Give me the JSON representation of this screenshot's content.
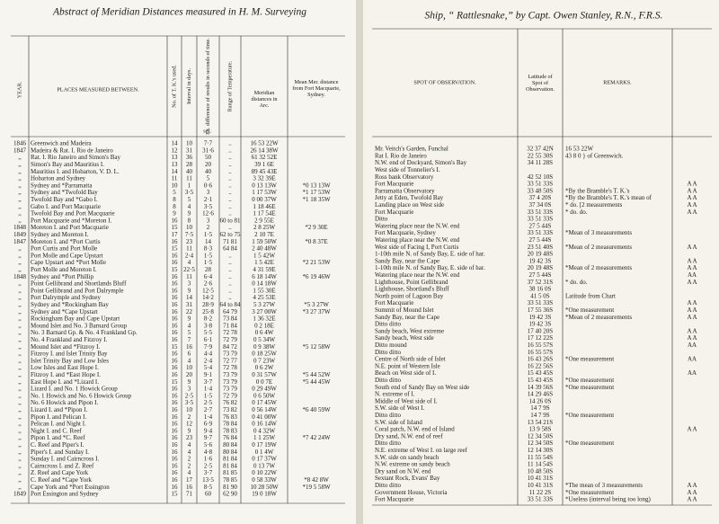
{
  "left_page": {
    "title": "Abstract of Meridian Distances measured in H. M. Surveying",
    "headers": {
      "year": "YEAR.",
      "place": "PLACES MEASURED BETWEEN.",
      "tk": "No. of T. K.'s used.",
      "days": "Interval in days.",
      "err": "Ex. difference of results in seconds of time.",
      "err_unit": "sec.",
      "temp": "Range of Temperature.",
      "arc": "Meridian distances in Arc.",
      "mean": "Mean Mer. distance from Fort Macquarie, Sydney."
    },
    "rows": [
      {
        "year": "1846",
        "place": "Greenwich and Madeira",
        "tk": "14",
        "days": "10",
        "err": "7·7",
        "temp": "..",
        "arc": "16 53 22W"
      },
      {
        "year": "1847",
        "place": "Madeira & Rat. I. Rio de Janeiro",
        "tk": "12",
        "days": "31",
        "err": "31·6",
        "temp": "..",
        "arc": "26 14 38W"
      },
      {
        "year": ",,",
        "place": "Rat. I. Rio Janeiro and Simon's Bay",
        "tk": "13",
        "days": "36",
        "err": "50",
        "temp": "..",
        "arc": "61 32 52E"
      },
      {
        "year": ",,",
        "place": "Simon's Bay and Mauritius I.",
        "tk": "13",
        "days": "28",
        "err": "20",
        "temp": "..",
        "arc": "39 1 6E"
      },
      {
        "year": ",,",
        "place": "Mauritius I. and Hobarton, V. D. L.",
        "tk": "14",
        "days": "40",
        "err": "40",
        "temp": "..",
        "arc": "89 45 43E"
      },
      {
        "year": ",,",
        "place": "Hobarton and Sydney",
        "tk": "11",
        "days": "11",
        "err": "5",
        "temp": "..",
        "arc": "3 32 39E"
      },
      {
        "year": ",,",
        "place": "Sydney and *Parramatta",
        "tk": "10",
        "days": "1",
        "err": "0·6",
        "temp": "..",
        "arc": "0 13 13W",
        "mean": "*0 13 13W"
      },
      {
        "year": ",,",
        "place": "Sydney and *Twofold Bay",
        "tk": "5",
        "days": "3·5",
        "err": "3",
        "temp": "..",
        "arc": "1 17 53W",
        "mean": "*1 17 53W"
      },
      {
        "year": ",,",
        "place": "Twofold Bay and *Gabo I.",
        "tk": "8",
        "days": "5",
        "err": "2·1",
        "temp": "..",
        "arc": "0 00 37W",
        "mean": "*1 18 35W"
      },
      {
        "year": ",,",
        "place": "Gabo I. and Port Macquarie",
        "tk": "8",
        "days": "4",
        "err": "3·5",
        "temp": "..",
        "arc": "1 18 46E"
      },
      {
        "year": ",,",
        "place": "Twofold Bay and Port Macquarie",
        "tk": "9",
        "days": "9",
        "err": "12·6",
        "temp": "..",
        "arc": "1 17 54E"
      },
      {
        "year": ",,",
        "place": "Port Macquarie and *Moreton I.",
        "tk": "16",
        "days": "8",
        "err": "3",
        "temp": "60 to 81",
        "arc": "2 9 55E"
      },
      {
        "year": "1848",
        "place": "Moreton I. and Port Macquarie",
        "tk": "15",
        "days": "10",
        "err": "2",
        "temp": "..",
        "arc": "2 8 25W",
        "mean": "*2 9 30E"
      },
      {
        "year": "1849",
        "place": "Sydney and Moreton I.",
        "tk": "17",
        "days": "7·5",
        "err": "1·5",
        "temp": "62 to 75",
        "arc": "2 10 7E"
      },
      {
        "year": "1847",
        "place": "Moreton I. and *Port Curtis",
        "tk": "16",
        "days": "23",
        "err": "14",
        "temp": "71 81",
        "arc": "1 59 50W",
        "mean": "*0 8 37E"
      },
      {
        "year": ",,",
        "place": "Port Curtis and Port Molle",
        "tk": "15",
        "days": "11",
        "err": "8·3",
        "temp": "64 84",
        "arc": "2 40 48W"
      },
      {
        "year": ",,",
        "place": "Port Molle and Cape Upstart",
        "tk": "16",
        "days": "2·4",
        "err": "1·5",
        "temp": "..",
        "arc": "1 5 42W"
      },
      {
        "year": ",,",
        "place": "Cape Upstart and *Port Molle",
        "tk": "16",
        "days": "4",
        "err": "1·5",
        "temp": "..",
        "arc": "1 5 42E",
        "mean": "*2 21 53W"
      },
      {
        "year": ",,",
        "place": "Port Molle and Moreton I.",
        "tk": "15",
        "days": "22·5",
        "err": "28",
        "temp": "..",
        "arc": "4 31 59E"
      },
      {
        "year": "1848",
        "place": "Sydney and *Port Phillip",
        "tk": "16",
        "days": "11",
        "err": "6·4",
        "temp": "..",
        "arc": "6 18 14W",
        "mean": "*6 19 46W"
      },
      {
        "year": ",,",
        "place": "Point Gellibrand and Shortlands Bluff",
        "tk": "16",
        "days": "3",
        "err": "2·6",
        "temp": "..",
        "arc": "0 14 18W"
      },
      {
        "year": ",,",
        "place": "Point Gellibrand and Port Dalrymple",
        "tk": "16",
        "days": "9",
        "err": "12·5",
        "temp": "..",
        "arc": "1 55 30E"
      },
      {
        "year": ",,",
        "place": "Port Dalrymple and Sydney",
        "tk": "16",
        "days": "14",
        "err": "14·2",
        "temp": "..",
        "arc": "4 25 53E"
      },
      {
        "year": ",,",
        "place": "Sydney and *Rockingham Bay",
        "tk": "16",
        "days": "31",
        "err": "28·9",
        "temp": "64 to 84",
        "arc": "5 3 27W",
        "mean": "*5 3 27W"
      },
      {
        "year": ",,",
        "place": "Sydney and *Cape Upstart",
        "tk": "16",
        "days": "22",
        "err": "25·8",
        "temp": "64 79",
        "arc": "3 27 00W",
        "mean": "*3 27 37W"
      },
      {
        "year": ",,",
        "place": "Rockingham Bay and Cape Upstart",
        "tk": "16",
        "days": "9",
        "err": "8·2",
        "temp": "73 84",
        "arc": "1 36 32E"
      },
      {
        "year": ",,",
        "place": "Mound Islet and No. 3 Barnard Group",
        "tk": "16",
        "days": "4",
        "err": "3·8",
        "temp": "71 84",
        "arc": "0 2 18E"
      },
      {
        "year": ",,",
        "place": "No. 3 Barnard Gp. & No. 4 Frankland Gp.",
        "tk": "16",
        "days": "5",
        "err": "5·5",
        "temp": "72 78",
        "arc": "0 6 4W"
      },
      {
        "year": ",,",
        "place": "No. 4 Frankland and Fitzroy I.",
        "tk": "16",
        "days": "7",
        "err": "6·1",
        "temp": "72 79",
        "arc": "0 5 34W"
      },
      {
        "year": ",,",
        "place": "Mound Islet and *Fitzroy I.",
        "tk": "15",
        "days": "16",
        "err": "7·9",
        "temp": "84 72",
        "arc": "0 9 38W",
        "mean": "*5 12 58W"
      },
      {
        "year": ",,",
        "place": "Fitzroy I. and Islet Trinity Bay",
        "tk": "16",
        "days": "6",
        "err": "4·4",
        "temp": "73 79",
        "arc": "0 18 25W"
      },
      {
        "year": ",,",
        "place": "Islet Trinity Bay and Low Isles",
        "tk": "16",
        "days": "4",
        "err": "2·4",
        "temp": "72 77",
        "arc": "0 7 23W"
      },
      {
        "year": ",,",
        "place": "Low Isles and East Hope I.",
        "tk": "16",
        "days": "10",
        "err": "5·4",
        "temp": "72 78",
        "arc": "0 6 2W"
      },
      {
        "year": ",,",
        "place": "Fitzroy I. and *East Hope I.",
        "tk": "16",
        "days": "20",
        "err": "9·1",
        "temp": "73 79",
        "arc": "0 31 57W",
        "mean": "*5 44 52W"
      },
      {
        "year": ",,",
        "place": "East Hope I. and *Lizard I.",
        "tk": "15",
        "days": "9",
        "err": "3·7",
        "temp": "73 79",
        "arc": "0 0 7E",
        "mean": "*5 44 45W"
      },
      {
        "year": ",,",
        "place": "Lizard I. and No. 1 Howick Group",
        "tk": "16",
        "days": "3",
        "err": "1·4",
        "temp": "73 79",
        "arc": "0 29 49W"
      },
      {
        "year": ",,",
        "place": "No. 1 Howick and No. 6 Howick Group",
        "tk": "16",
        "days": "2·5",
        "err": "1·5",
        "temp": "72 79",
        "arc": "0 6 50W"
      },
      {
        "year": ",,",
        "place": "No. 6 Howick and Pipon I.",
        "tk": "16",
        "days": "3·5",
        "err": "2·5",
        "temp": "76 82",
        "arc": "0 17 45W"
      },
      {
        "year": ",,",
        "place": "Lizard I. and *Pipon I.",
        "tk": "16",
        "days": "10",
        "err": "2·7",
        "temp": "73 82",
        "arc": "0 56 14W",
        "mean": "*6 40 59W"
      },
      {
        "year": ",,",
        "place": "Pipon I. and Pelican I.",
        "tk": "16",
        "days": "2",
        "err": "1·4",
        "temp": "76 83",
        "arc": "0 41 00W"
      },
      {
        "year": ",,",
        "place": "Pelican I. and Night I.",
        "tk": "16",
        "days": "12",
        "err": "6·9",
        "temp": "78 84",
        "arc": "0 16 14W"
      },
      {
        "year": ",,",
        "place": "Night I. and C. Reef",
        "tk": "16",
        "days": "9",
        "err": "9·4",
        "temp": "78 83",
        "arc": "0 4 32W"
      },
      {
        "year": ",,",
        "place": "Pipon I. and *C. Reef",
        "tk": "16",
        "days": "23",
        "err": "9·7",
        "temp": "76 84",
        "arc": "1 1 25W",
        "mean": "*7 42 24W"
      },
      {
        "year": ",,",
        "place": "C. Reef and Piper's I.",
        "tk": "16",
        "days": "4",
        "err": "5·6",
        "temp": "80 84",
        "arc": "0 17 19W"
      },
      {
        "year": ",,",
        "place": "Piper's I. and Sunday I.",
        "tk": "16",
        "days": "4",
        "err": "4·8",
        "temp": "80 84",
        "arc": "0 1 4W"
      },
      {
        "year": ",,",
        "place": "Sunday I. and Cairncross I.",
        "tk": "16",
        "days": "2",
        "err": "1·6",
        "temp": "81 84",
        "arc": "0 17 37W"
      },
      {
        "year": ",,",
        "place": "Cairncross I. and Z. Reef",
        "tk": "16",
        "days": "2",
        "err": "2·5",
        "temp": "81 84",
        "arc": "0 13 7W"
      },
      {
        "year": ",,",
        "place": "Z. Reef and Cape York",
        "tk": "16",
        "days": "4",
        "err": "3·7",
        "temp": "81 85",
        "arc": "0 10 22W"
      },
      {
        "year": ",,",
        "place": "C. Reef and *Cape York",
        "tk": "16",
        "days": "17",
        "err": "13·5",
        "temp": "78 85",
        "arc": "0 58 33W",
        "mean": "*8 42 8W"
      },
      {
        "year": ",,",
        "place": "Cape York and *Port Essington",
        "tk": "16",
        "days": "16",
        "err": "8·5",
        "temp": "81 90",
        "arc": "10 28 50W",
        "mean": "*19 5 58W"
      },
      {
        "year": "1849",
        "place": "Port Essington and Sydney",
        "tk": "15",
        "days": "71",
        "err": "60",
        "temp": "62 90",
        "arc": "19 0 18W"
      }
    ]
  },
  "right_page": {
    "title": "Ship, “ Rattlesnake,” by Capt. Owen Stanley, R.N., F.R.S.",
    "headers": {
      "spot": "SPOT OF OBSERVATION.",
      "lat": "Latitude of Spot of Observation.",
      "remarks": "REMARKS."
    },
    "rows": [
      {
        "spot": "Mr. Veitch's Garden, Funchal",
        "lat": "32 37 42N",
        "remarks": "16 53 22W"
      },
      {
        "spot": "Rat I. Rio de Janeiro",
        "lat": "22 55 30S",
        "remarks": "43 8 0 } of Greenwich."
      },
      {
        "spot": "N.W. end of Dockyard, Simon's Bay",
        "lat": "34 11 28S"
      },
      {
        "spot": "West side of Tonnelier's I."
      },
      {
        "spot": "Ross bank Observatory",
        "lat": "42 52 10S"
      },
      {
        "spot": "Fort Macquarie",
        "lat": "33 51 33S",
        "marks": "A A"
      },
      {
        "spot": "Parramatta Observatory",
        "lat": "33 48 50S",
        "remarks": "*By the Bramble's T. K.'s",
        "marks": "A A"
      },
      {
        "spot": "Jetty at Eden, Twofold Bay",
        "lat": "37 4 20S",
        "remarks": "*By the Bramble's T. K.'s mean of",
        "marks": "A A"
      },
      {
        "spot": "Landing place on West side",
        "lat": "37 34 0S",
        "remarks": "* do. [2 measurements",
        "marks": "A A"
      },
      {
        "spot": "Fort Macquarie",
        "lat": "33 51 33S",
        "remarks": "* do. do.",
        "marks": "A A"
      },
      {
        "spot": "Ditto",
        "lat": "33 51 33S"
      },
      {
        "spot": "Watering place near the N.W. end",
        "lat": "27 5 44S"
      },
      {
        "spot": "Fort Macquarie, Sydney",
        "lat": "33 51 33S",
        "remarks": "*Mean of 3 measurements"
      },
      {
        "spot": "Watering place near the N.W. end",
        "lat": "27 5 44S"
      },
      {
        "spot": "West side of Facing I, Port Curtis",
        "lat": "23 51 40S",
        "remarks": "*Mean of 2 measurements",
        "marks": "A A"
      },
      {
        "spot": "1-10th mile N. of Sandy Bay, E. side of har.",
        "lat": "20 19 48S"
      },
      {
        "spot": "Sandy Bay, near the Cape",
        "lat": "19 42 3S",
        "marks": "A A"
      },
      {
        "spot": "1-10th mile N. of Sandy Bay, E. side of har.",
        "lat": "20 19 48S",
        "remarks": "*Mean of 2 measurements",
        "marks": "A A"
      },
      {
        "spot": "Watering place near the N.W. end",
        "lat": "27 5 44S",
        "marks": "AA"
      },
      {
        "spot": "Lighthouse, Point Gellibrand",
        "lat": "37 52 31S",
        "remarks": "* do. do.",
        "marks": "A A"
      },
      {
        "spot": "Lighthouse, Shortland's Bluff",
        "lat": "38 16 0S"
      },
      {
        "spot": "North point of Lagoon Bay",
        "lat": "41 5 0S",
        "remarks": "Latitude from Chart"
      },
      {
        "spot": "Fort Macquarie",
        "lat": "33 51 33S",
        "marks": "A A"
      },
      {
        "spot": "Summit of Mound Islet",
        "lat": "17 55 36S",
        "remarks": "*One measurement",
        "marks": "A A"
      },
      {
        "spot": "Sandy Bay, near the Cape",
        "lat": "19 42 3S",
        "remarks": "*Mean of 2 measurements",
        "marks": "A A"
      },
      {
        "spot": "Ditto ditto",
        "lat": "19 42 3S"
      },
      {
        "spot": "Sandy beach, West extreme",
        "lat": "17 40 20S",
        "marks": "A A"
      },
      {
        "spot": "Sandy beach, West side",
        "lat": "17 12 22S",
        "marks": "A A"
      },
      {
        "spot": "Ditto mound",
        "lat": "16 55 57S",
        "marks": "AA"
      },
      {
        "spot": "Ditto ditto",
        "lat": "16 55 57S"
      },
      {
        "spot": "Centre of North side of Islet",
        "lat": "16 43 26S",
        "remarks": "*One measurement",
        "marks": "AA"
      },
      {
        "spot": "N.E. point of Western Isle",
        "lat": "16 22 56S"
      },
      {
        "spot": "Beach on West side of I.",
        "lat": "15 43 45S",
        "marks": "AA"
      },
      {
        "spot": "Ditto ditto",
        "lat": "15 43 45S",
        "remarks": "*One measurement"
      },
      {
        "spot": "South end of Sandy Bay on West side",
        "lat": "14 39 56S",
        "remarks": "*One measurement"
      },
      {
        "spot": "N. extreme of I.",
        "lat": "14 29 46S"
      },
      {
        "spot": "Middle of West side of I.",
        "lat": "14 26 0S"
      },
      {
        "spot": "S.W. side of West I.",
        "lat": "14 7 9S"
      },
      {
        "spot": "Ditto ditto",
        "lat": "14 7 9S",
        "remarks": "*One measurement"
      },
      {
        "spot": "S.W. side of Island",
        "lat": "13 54 21S"
      },
      {
        "spot": "Coral patch, N.W. end of Island",
        "lat": "13 9 58S",
        "marks": "A A"
      },
      {
        "spot": "Dry sand, N.W. end of reef",
        "lat": "12 34 50S"
      },
      {
        "spot": "Ditto ditto",
        "lat": "12 34 50S",
        "remarks": "*One measurement"
      },
      {
        "spot": "N.E. extreme of West I. on large reef",
        "lat": "12 14 30S"
      },
      {
        "spot": "S.W. side on sandy beach",
        "lat": "11 55 54S"
      },
      {
        "spot": "N.W. extreme on sandy beach",
        "lat": "11 14 54S"
      },
      {
        "spot": "Dry sand on N.W. end",
        "lat": "10 48 50S"
      },
      {
        "spot": "Sextant Rock, Evans' Bay",
        "lat": "10 41 31S"
      },
      {
        "spot": "Ditto ditto",
        "lat": "10 41 31S",
        "remarks": "*The mean of 3 measurements",
        "marks": "A A"
      },
      {
        "spot": "Government House, Victoria",
        "lat": "11 22 2S",
        "remarks": "*One measurement",
        "marks": "A A"
      },
      {
        "spot": "Fort Macquarie",
        "lat": "33 51 33S",
        "remarks": "*Useless (interval being too long)",
        "marks": "A A"
      }
    ]
  }
}
